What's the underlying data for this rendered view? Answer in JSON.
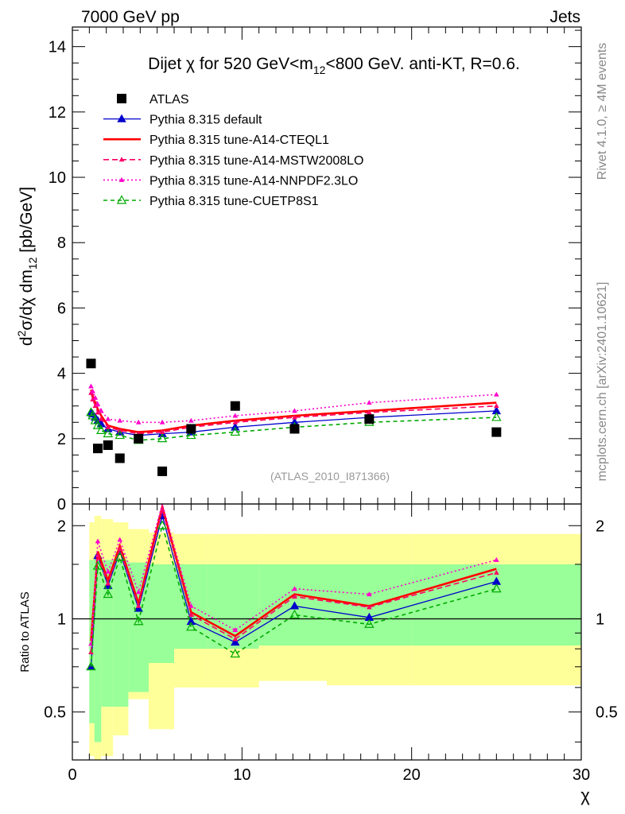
{
  "header": {
    "left": "7000 GeV pp",
    "right": "Jets"
  },
  "side_labels": {
    "top": "Rivet 4.1.0, ≥ 4M events",
    "bottom": "mcplots.cern.ch [arXiv:2401.10621]"
  },
  "analysis_id": "(ATLAS_2010_I871366)",
  "colors": {
    "atlas": "#000000",
    "default": "#0000cc",
    "cteql1": "#ff0000",
    "mstw": "#ff0066",
    "nnpdf": "#ff00cc",
    "cuetp8s1": "#00aa00",
    "band_outer": "#ffff99",
    "band_inner": "#99ff99"
  },
  "chart_data": [
    {
      "type": "line",
      "panel": "main",
      "title_parts": {
        "pre": "Dijet ",
        "chi": "χ",
        "mid": " for 520 GeV<m",
        "sub": "12",
        "post": "<800 GeV.  anti-KT, R=0.6."
      },
      "ylabel_parts": {
        "d": "d",
        "sup": "2",
        "body": "σ/dχ dm",
        "sub": "12",
        "unit": " [pb/GeV]"
      },
      "xlim": [
        0,
        30
      ],
      "ylim": [
        0,
        14.6
      ],
      "yticks": [
        0,
        2,
        4,
        6,
        8,
        10,
        12,
        14
      ],
      "legend": [
        {
          "key": "atlas",
          "label": "ATLAS"
        },
        {
          "key": "default",
          "label": "Pythia 8.315 default"
        },
        {
          "key": "cteql1",
          "label": "Pythia 8.315 tune-A14-CTEQL1"
        },
        {
          "key": "mstw",
          "label": "Pythia 8.315 tune-A14-MSTW2008LO"
        },
        {
          "key": "nnpdf",
          "label": "Pythia 8.315 tune-A14-NNPDF2.3LO"
        },
        {
          "key": "cuetp8s1",
          "label": "Pythia 8.315 tune-CUETP8S1"
        }
      ],
      "x": [
        1.1,
        1.2,
        1.35,
        1.5,
        1.7,
        2.1,
        2.8,
        3.9,
        5.3,
        7.0,
        9.6,
        13.1,
        17.5,
        25.0
      ],
      "atlas": {
        "x": [
          1.1,
          1.5,
          2.1,
          2.8,
          3.9,
          5.3,
          7.0,
          9.6,
          13.1,
          17.5,
          25.0
        ],
        "y": [
          4.3,
          1.7,
          1.8,
          1.4,
          2.0,
          1.0,
          2.3,
          3.0,
          2.3,
          2.6,
          2.2
        ]
      },
      "series": [
        {
          "key": "default",
          "name": "Pythia 8.315 default",
          "dash": "",
          "marker": "filled-triangle",
          "y": [
            2.8,
            2.75,
            2.65,
            2.55,
            2.45,
            2.3,
            2.2,
            2.1,
            2.15,
            2.2,
            2.35,
            2.5,
            2.65,
            2.85
          ]
        },
        {
          "key": "cteql1",
          "name": "Pythia 8.315 tune-A14-CTEQL1",
          "dash": "",
          "marker": "none",
          "y": [
            3.5,
            3.3,
            3.1,
            2.9,
            2.7,
            2.4,
            2.3,
            2.2,
            2.25,
            2.4,
            2.55,
            2.7,
            2.85,
            3.1
          ]
        },
        {
          "key": "mstw",
          "name": "Pythia 8.315 tune-A14-MSTW2008LO",
          "dash": "7,4",
          "marker": "small-triangle",
          "y": [
            3.4,
            3.2,
            3.0,
            2.8,
            2.6,
            2.35,
            2.25,
            2.15,
            2.2,
            2.35,
            2.5,
            2.65,
            2.8,
            3.0
          ]
        },
        {
          "key": "nnpdf",
          "name": "Pythia 8.315 tune-A14-NNPDF2.3LO",
          "dash": "2,3",
          "marker": "small-triangle",
          "y": [
            3.6,
            3.45,
            3.25,
            3.05,
            2.85,
            2.6,
            2.55,
            2.5,
            2.5,
            2.55,
            2.7,
            2.85,
            3.1,
            3.35
          ]
        },
        {
          "key": "cuetp8s1",
          "name": "Pythia 8.315 tune-CUETP8S1",
          "dash": "5,4",
          "marker": "open-triangle",
          "y": [
            2.8,
            2.7,
            2.55,
            2.4,
            2.25,
            2.15,
            2.1,
            1.95,
            2.0,
            2.1,
            2.2,
            2.35,
            2.5,
            2.65
          ]
        }
      ]
    },
    {
      "type": "line",
      "panel": "ratio",
      "ylabel": "Ratio to ATLAS",
      "xlabel": "χ",
      "xlim": [
        0,
        30
      ],
      "ylim": [
        0.35,
        2.35
      ],
      "yscale": "log",
      "yticks": [
        0.5,
        1,
        2
      ],
      "xticks": [
        0,
        10,
        20,
        30
      ],
      "reference": 1,
      "x": [
        1.1,
        1.5,
        2.1,
        2.8,
        3.9,
        5.3,
        7.0,
        9.6,
        13.1,
        17.5,
        25.0
      ],
      "band_edges": [
        1.0,
        1.3,
        1.7,
        2.4,
        3.3,
        4.5,
        6.0,
        8.0,
        11.0,
        15.0,
        20.0,
        30.0
      ],
      "band_outer": {
        "lo": [
          0.36,
          0.32,
          0.36,
          0.42,
          0.55,
          0.44,
          0.6,
          0.6,
          0.63,
          0.61,
          0.61
        ],
        "hi": [
          2.05,
          2.15,
          2.1,
          2.05,
          1.95,
          1.9,
          1.88,
          1.88,
          1.88,
          1.88,
          1.88
        ]
      },
      "band_inner": {
        "lo": [
          0.46,
          0.4,
          0.52,
          0.52,
          0.58,
          0.72,
          0.8,
          0.8,
          0.82,
          0.82,
          0.82
        ],
        "hi": [
          1.55,
          1.6,
          1.55,
          1.55,
          1.52,
          1.5,
          1.5,
          1.5,
          1.5,
          1.5,
          1.5
        ]
      },
      "series": [
        {
          "key": "default",
          "dash": "",
          "marker": "filled-triangle",
          "y": [
            0.7,
            1.6,
            1.28,
            1.65,
            1.08,
            2.15,
            0.98,
            0.84,
            1.1,
            1.01,
            1.32
          ]
        },
        {
          "key": "cteql1",
          "dash": "",
          "marker": "none",
          "y": [
            0.85,
            1.65,
            1.33,
            1.72,
            1.12,
            2.3,
            1.05,
            0.88,
            1.2,
            1.1,
            1.45
          ]
        },
        {
          "key": "mstw",
          "dash": "7,4",
          "marker": "small-triangle",
          "y": [
            0.78,
            1.6,
            1.3,
            1.68,
            1.1,
            2.25,
            1.03,
            0.86,
            1.18,
            1.09,
            1.41
          ]
        },
        {
          "key": "nnpdf",
          "dash": "2,3",
          "marker": "small-triangle",
          "y": [
            0.83,
            1.78,
            1.42,
            1.8,
            1.22,
            2.42,
            1.1,
            0.92,
            1.25,
            1.2,
            1.55
          ]
        },
        {
          "key": "cuetp8s1",
          "dash": "5,4",
          "marker": "open-triangle",
          "y": [
            0.7,
            1.48,
            1.2,
            1.58,
            0.98,
            2.0,
            0.94,
            0.77,
            1.03,
            0.96,
            1.25
          ]
        }
      ]
    }
  ]
}
